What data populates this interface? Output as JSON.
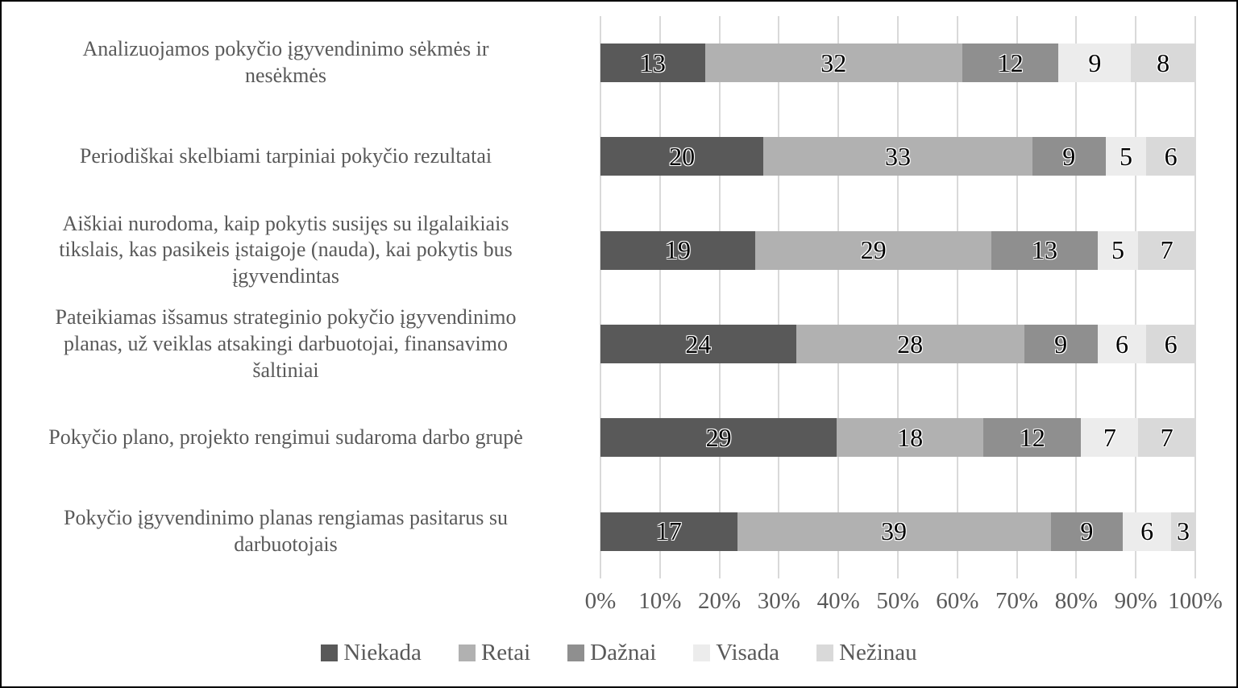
{
  "window": {
    "background_color": "#ffffff",
    "border_color": "#000000"
  },
  "chart_data": {
    "type": "bar",
    "variant": "stacked-100-percent",
    "orientation": "horizontal",
    "title": "",
    "xlabel": "",
    "ylabel": "",
    "grid": true,
    "gridline_color": "#d9d9d9",
    "xlim": [
      0,
      100
    ],
    "x_ticks": [
      "0%",
      "10%",
      "20%",
      "30%",
      "40%",
      "50%",
      "60%",
      "70%",
      "80%",
      "90%",
      "100%"
    ],
    "legend_position": "bottom",
    "categories": [
      "Analizuojamos pokyčio įgyvendinimo sėkmės ir nesėkmės",
      "Periodiškai skelbiami tarpiniai pokyčio rezultatai",
      "Aiškiai nurodoma, kaip pokytis susijęs su ilgalaikiais tikslais, kas pasikeis įstaigoje (nauda), kai pokytis bus įgyvendintas",
      "Pateikiamas išsamus strateginio pokyčio įgyvendinimo planas, už veiklas atsakingi darbuotojai, finansavimo šaltiniai",
      "Pokyčio plano, projekto rengimui sudaroma darbo grupė",
      "Pokyčio įgyvendinimo planas rengiamas pasitarus su darbuotojais"
    ],
    "category_lines": [
      [
        "Analizuojamos pokyčio įgyvendinimo sėkmės ir",
        "nesėkmės"
      ],
      [
        "Periodiškai skelbiami tarpiniai pokyčio rezultatai"
      ],
      [
        "Aiškiai nurodoma, kaip pokytis susijęs su ilgalaikiais",
        "tikslais, kas pasikeis įstaigoje (nauda), kai pokytis bus",
        "įgyvendintas"
      ],
      [
        "Pateikiamas išsamus strateginio pokyčio įgyvendinimo",
        "planas, už veiklas atsakingi darbuotojai, finansavimo",
        "šaltiniai"
      ],
      [
        "Pokyčio plano, projekto rengimui sudaroma darbo grupė"
      ],
      [
        "Pokyčio įgyvendinimo planas rengiamas pasitarus su",
        "darbuotojais"
      ]
    ],
    "series": [
      {
        "name": "Niekada",
        "color": "#595959",
        "values": [
          13,
          20,
          19,
          24,
          29,
          17
        ]
      },
      {
        "name": "Retai",
        "color": "#b1b1b1",
        "values": [
          32,
          33,
          29,
          28,
          18,
          39
        ]
      },
      {
        "name": "Dažnai",
        "color": "#8f8f8f",
        "values": [
          12,
          9,
          13,
          9,
          12,
          9
        ]
      },
      {
        "name": "Visada",
        "color": "#ececec",
        "values": [
          9,
          5,
          5,
          6,
          7,
          6
        ]
      },
      {
        "name": "Nežinau",
        "color": "#d9d9d9",
        "values": [
          8,
          6,
          7,
          6,
          7,
          3
        ]
      }
    ]
  }
}
